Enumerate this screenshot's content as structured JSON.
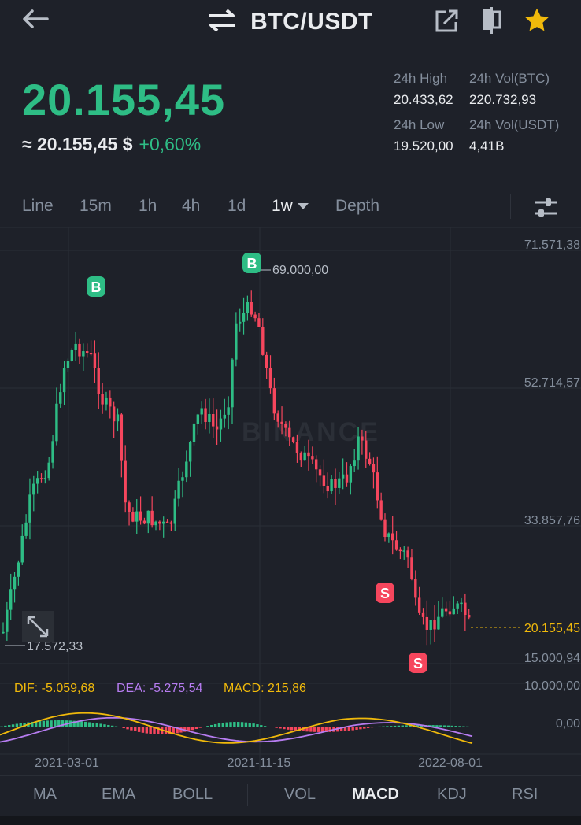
{
  "header": {
    "title": "BTC/USDT",
    "icons": [
      "back-arrow-icon",
      "swap-icon",
      "share-icon",
      "compare-icon",
      "star-icon"
    ]
  },
  "ticker": {
    "price": "20.155,45",
    "usd_approx": "≈ 20.155,45 $",
    "change": "+0,60%",
    "high_label": "24h High",
    "high_value": "20.433,62",
    "low_label": "24h Low",
    "low_value": "19.520,00",
    "vol_btc_label": "24h Vol(BTC)",
    "vol_btc_value": "220.732,93",
    "vol_usdt_label": "24h Vol(USDT)",
    "vol_usdt_value": "4,41B"
  },
  "timeframes": {
    "line": "Line",
    "m15": "15m",
    "h1": "1h",
    "h4": "4h",
    "d1": "1d",
    "w1": "1w",
    "depth": "Depth"
  },
  "chart": {
    "watermark": "BINANCE",
    "price_axis": [
      "71.571,38",
      "52.714,57",
      "33.857,76",
      "15.000,94"
    ],
    "current_price_tag": "20.155,45",
    "high_marker": "69.000,00",
    "low_marker": "17.572,33",
    "macd_axis": [
      "10.000,00",
      "0,00"
    ],
    "date_axis": [
      "2021-03-01",
      "2021-11-15",
      "2022-08-01"
    ],
    "signals": {
      "buy": "B",
      "sell": "S"
    },
    "macd_legend": {
      "dif": "DIF: -5.059,68",
      "dea": "DEA: -5.275,54",
      "macd": "MACD: 215,86"
    },
    "colors": {
      "up": "#2ebd85",
      "down": "#f6465d",
      "dif": "#f0b90b",
      "dea": "#b67cf0"
    }
  },
  "indicators": {
    "ma": "MA",
    "ema": "EMA",
    "boll": "BOLL",
    "vol": "VOL",
    "macd": "MACD",
    "kdj": "KDJ",
    "rsi": "RSI"
  }
}
